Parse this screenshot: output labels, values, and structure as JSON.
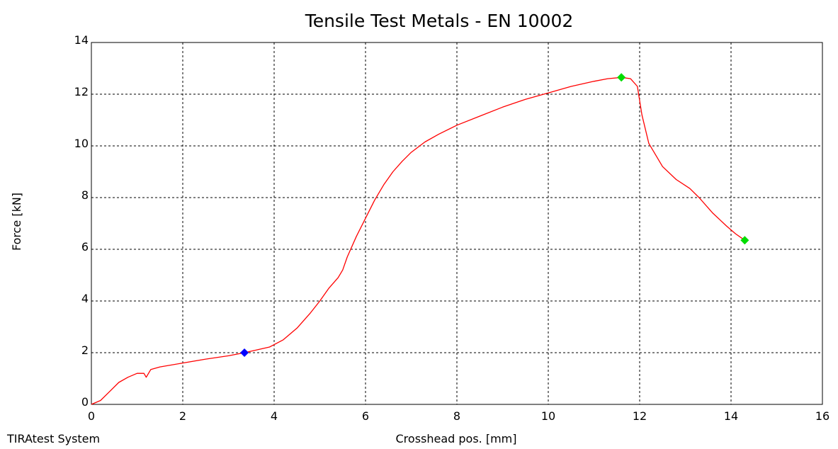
{
  "footer_text": "TIRAtest System",
  "chart_data": {
    "type": "line",
    "title": "Tensile Test Metals - EN 10002",
    "xlabel": "Crosshead pos. [mm]",
    "ylabel": "Force [kN]",
    "xlim": [
      0,
      16
    ],
    "ylim": [
      0,
      14
    ],
    "xticks": [
      0,
      2,
      4,
      6,
      8,
      10,
      12,
      14,
      16
    ],
    "yticks": [
      0,
      2,
      4,
      6,
      8,
      10,
      12,
      14
    ],
    "grid": true,
    "grid_style": "dashed",
    "series": [
      {
        "color": "#ff0000",
        "x": [
          0,
          0.2,
          0.4,
          0.6,
          0.8,
          1.0,
          1.15,
          1.2,
          1.3,
          1.5,
          2.0,
          2.5,
          3.0,
          3.35,
          3.6,
          3.9,
          4.2,
          4.5,
          4.8,
          5.0,
          5.2,
          5.4,
          5.5,
          5.6,
          5.8,
          6.0,
          6.2,
          6.4,
          6.6,
          6.8,
          7.0,
          7.3,
          7.6,
          8.0,
          8.5,
          9.0,
          9.5,
          10.0,
          10.5,
          11.0,
          11.3,
          11.6,
          11.8,
          11.95,
          12.05,
          12.2,
          12.5,
          12.8,
          13.1,
          13.3,
          13.6,
          13.9,
          14.1,
          14.3
        ],
        "y": [
          0.0,
          0.15,
          0.5,
          0.85,
          1.05,
          1.2,
          1.2,
          1.05,
          1.35,
          1.45,
          1.6,
          1.75,
          1.88,
          2.0,
          2.1,
          2.22,
          2.5,
          2.95,
          3.55,
          4.0,
          4.5,
          4.9,
          5.2,
          5.7,
          6.5,
          7.2,
          7.9,
          8.5,
          9.0,
          9.4,
          9.75,
          10.15,
          10.45,
          10.8,
          11.15,
          11.5,
          11.8,
          12.05,
          12.3,
          12.5,
          12.6,
          12.65,
          12.6,
          12.3,
          11.2,
          10.1,
          9.2,
          8.7,
          8.35,
          8.0,
          7.4,
          6.9,
          6.6,
          6.35
        ]
      }
    ],
    "markers": [
      {
        "x": 3.35,
        "y": 2.0,
        "color": "#0000ff",
        "shape": "diamond"
      },
      {
        "x": 11.6,
        "y": 12.65,
        "color": "#00dd00",
        "shape": "diamond"
      },
      {
        "x": 14.3,
        "y": 6.35,
        "color": "#00dd00",
        "shape": "diamond"
      }
    ]
  }
}
